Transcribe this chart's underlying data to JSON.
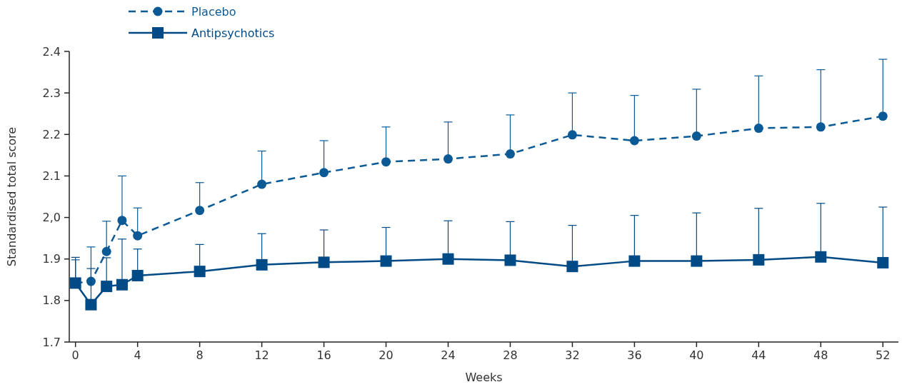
{
  "chart_data": {
    "type": "line",
    "xlabel": "Weeks",
    "ylabel": "Standardised total score",
    "x": [
      0,
      1,
      2,
      3,
      4,
      8,
      12,
      16,
      20,
      24,
      28,
      32,
      36,
      40,
      44,
      48,
      52
    ],
    "xlim": [
      -0.4,
      53
    ],
    "xticks": [
      0,
      4,
      8,
      12,
      16,
      20,
      24,
      28,
      32,
      36,
      40,
      44,
      48,
      52
    ],
    "ylim": [
      1.7,
      2.4
    ],
    "yticks": [
      1.7,
      1.8,
      1.9,
      {
        "value": 2.0,
        "label": "2,0"
      },
      2.1,
      2.2,
      2.3,
      2.4
    ],
    "legend": "top left",
    "grid": false,
    "series": [
      {
        "name": "Placebo",
        "color": "#0b5a96",
        "marker": "circle",
        "line_style": "dashed",
        "values": [
          1.842,
          1.846,
          1.918,
          1.993,
          1.956,
          2.017,
          2.08,
          2.108,
          2.134,
          2.141,
          2.153,
          2.199,
          2.185,
          2.196,
          2.215,
          2.218,
          2.244
        ],
        "errors": [
          [
            1.842,
            1.898
          ],
          [
            1.846,
            1.929
          ],
          [
            1.918,
            1.991
          ],
          [
            1.993,
            2.1
          ],
          [
            1.956,
            2.023
          ],
          [
            2.017,
            2.084
          ],
          [
            2.08,
            2.16
          ],
          [
            2.108,
            2.185
          ],
          [
            2.134,
            2.218
          ],
          [
            2.141,
            2.23
          ],
          [
            2.153,
            2.247
          ],
          [
            2.199,
            2.3
          ],
          [
            2.185,
            2.294
          ],
          [
            2.196,
            2.309
          ],
          [
            2.215,
            2.341
          ],
          [
            2.218,
            2.356
          ],
          [
            2.244,
            2.381
          ]
        ]
      },
      {
        "name": "Antipsychotics",
        "color": "#004a85",
        "marker": "square",
        "line_style": "solid",
        "values": [
          1.842,
          1.79,
          1.834,
          1.838,
          1.86,
          1.87,
          1.886,
          1.892,
          1.895,
          1.9,
          1.897,
          1.882,
          1.895,
          1.895,
          1.898,
          1.905,
          1.891
        ],
        "errors": [
          [
            1.842,
            1.904
          ],
          [
            1.79,
            1.877
          ],
          [
            1.834,
            1.903
          ],
          [
            1.838,
            1.948
          ],
          [
            1.86,
            1.924
          ],
          [
            1.87,
            1.935
          ],
          [
            1.886,
            1.961
          ],
          [
            1.892,
            1.97
          ],
          [
            1.895,
            1.976
          ],
          [
            1.9,
            1.992
          ],
          [
            1.897,
            1.99
          ],
          [
            1.882,
            1.981
          ],
          [
            1.895,
            2.005
          ],
          [
            1.895,
            2.011
          ],
          [
            1.898,
            2.022
          ],
          [
            1.905,
            2.034
          ],
          [
            1.891,
            2.025
          ]
        ]
      }
    ]
  }
}
